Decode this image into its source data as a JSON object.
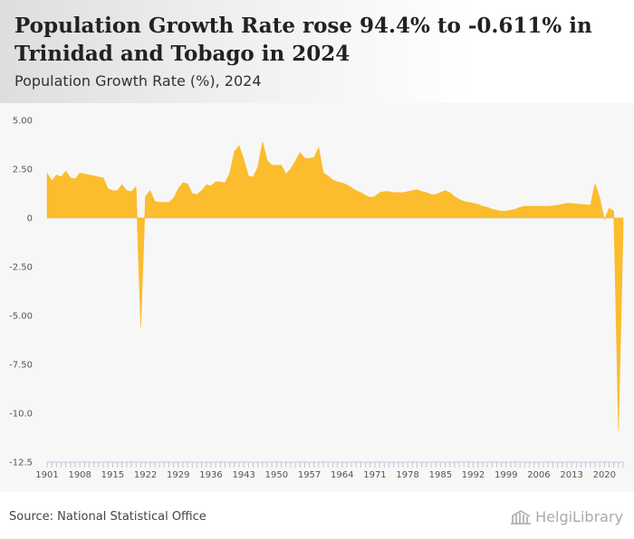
{
  "header": {
    "title": "Population Growth Rate rose 94.4% to -0.611% in Trinidad and Tobago in 2024",
    "subtitle": "Population Growth Rate (%), 2024"
  },
  "footer": {
    "source": "Source: National Statistical Office",
    "brand": "HelgiLibrary",
    "brand_icon": "library-building-icon"
  },
  "colors": {
    "area": "#fbbc2e",
    "header_bg": "#e4e4e4",
    "plot_bg": "#f7f7f7",
    "axis_tick": "#b8c8e0",
    "zero_line": "#aaaaaa"
  },
  "chart_data": {
    "type": "area",
    "title": "",
    "xlabel": "",
    "ylabel": "",
    "ylim": [
      -12.5,
      5.0
    ],
    "y_ticks": [
      "5.00",
      "2.50",
      "0",
      "-2.50",
      "-5.00",
      "-7.50",
      "-10.0",
      "-12.5"
    ],
    "x_ticks": [
      "1901",
      "1908",
      "1915",
      "1922",
      "1929",
      "1936",
      "1943",
      "1950",
      "1957",
      "1964",
      "1971",
      "1978",
      "1985",
      "1992",
      "1999",
      "2006",
      "2013",
      "2020"
    ],
    "grid": false,
    "x": [
      1901,
      1902,
      1903,
      1904,
      1905,
      1906,
      1907,
      1908,
      1909,
      1910,
      1911,
      1912,
      1913,
      1914,
      1915,
      1916,
      1917,
      1918,
      1919,
      1920,
      1921,
      1922,
      1923,
      1924,
      1925,
      1926,
      1927,
      1928,
      1929,
      1930,
      1931,
      1932,
      1933,
      1934,
      1935,
      1936,
      1937,
      1938,
      1939,
      1940,
      1941,
      1942,
      1943,
      1944,
      1945,
      1946,
      1947,
      1948,
      1949,
      1950,
      1951,
      1952,
      1953,
      1954,
      1955,
      1956,
      1957,
      1958,
      1959,
      1960,
      1961,
      1962,
      1963,
      1964,
      1965,
      1966,
      1967,
      1968,
      1969,
      1970,
      1971,
      1972,
      1973,
      1974,
      1975,
      1976,
      1977,
      1978,
      1979,
      1980,
      1981,
      1982,
      1983,
      1984,
      1985,
      1986,
      1987,
      1988,
      1989,
      1990,
      1991,
      1992,
      1993,
      1994,
      1995,
      1996,
      1997,
      1998,
      1999,
      2000,
      2001,
      2002,
      2003,
      2004,
      2005,
      2006,
      2007,
      2008,
      2009,
      2010,
      2011,
      2012,
      2013,
      2014,
      2015,
      2016,
      2017,
      2018,
      2019,
      2020,
      2021,
      2022,
      2023,
      2024
    ],
    "series": [
      {
        "values": [
          2.3,
          1.9,
          2.2,
          2.1,
          2.4,
          2.05,
          2.0,
          2.3,
          2.25,
          2.2,
          2.15,
          2.1,
          2.05,
          1.5,
          1.4,
          1.4,
          1.7,
          1.4,
          1.35,
          1.6,
          -5.6,
          1.1,
          1.4,
          0.85,
          0.8,
          0.8,
          0.8,
          1.0,
          1.5,
          1.8,
          1.75,
          1.25,
          1.2,
          1.4,
          1.7,
          1.65,
          1.85,
          1.85,
          1.8,
          2.3,
          3.4,
          3.7,
          3.0,
          2.15,
          2.1,
          2.6,
          3.9,
          2.95,
          2.7,
          2.7,
          2.7,
          2.25,
          2.5,
          2.9,
          3.35,
          3.05,
          3.05,
          3.1,
          3.6,
          2.3,
          2.15,
          1.95,
          1.85,
          1.8,
          1.7,
          1.55,
          1.4,
          1.3,
          1.15,
          1.05,
          1.1,
          1.3,
          1.35,
          1.35,
          1.3,
          1.3,
          1.3,
          1.35,
          1.4,
          1.45,
          1.35,
          1.3,
          1.2,
          1.2,
          1.3,
          1.4,
          1.3,
          1.1,
          0.95,
          0.85,
          0.8,
          0.75,
          0.7,
          0.6,
          0.55,
          0.45,
          0.4,
          0.35,
          0.35,
          0.4,
          0.45,
          0.55,
          0.6,
          0.6,
          0.6,
          0.6,
          0.6,
          0.6,
          0.62,
          0.65,
          0.7,
          0.75,
          0.75,
          0.72,
          0.7,
          0.68,
          0.65,
          1.75,
          1.05,
          -0.1,
          0.5,
          0.35,
          -10.9,
          -0.611
        ]
      }
    ]
  }
}
